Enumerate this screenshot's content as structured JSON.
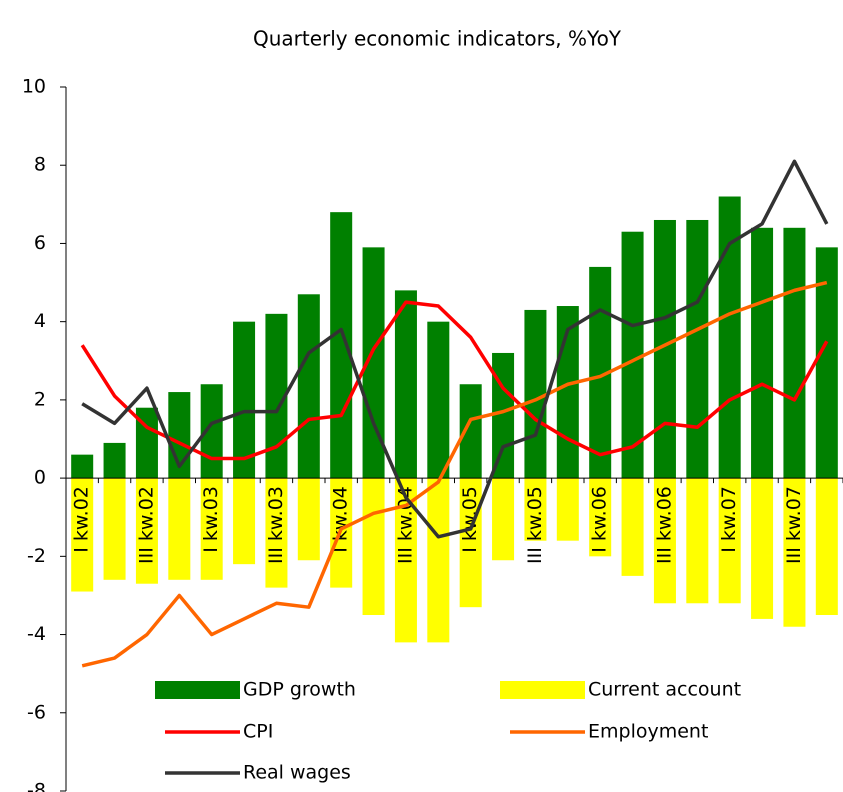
{
  "chart_data": {
    "type": "bar",
    "title": "Quarterly economic indicators, %YoY",
    "categories": [
      "I kw.02",
      null,
      "III kw.02",
      null,
      "I kw.03",
      null,
      "III kw.03",
      null,
      "I kw.04",
      null,
      "III kw.04",
      null,
      "I kw.05",
      null,
      "III kw.05",
      null,
      "I kw.06",
      null,
      "III kw.06",
      null,
      "I kw.07",
      null,
      "III kw.07",
      null
    ],
    "series": [
      {
        "name": "GDP growth",
        "type": "bar",
        "color": "#008000",
        "values": [
          0.6,
          0.9,
          1.8,
          2.2,
          2.4,
          4.0,
          4.2,
          4.7,
          6.8,
          5.9,
          4.8,
          4.0,
          2.4,
          3.2,
          4.3,
          4.4,
          5.4,
          6.3,
          6.6,
          6.6,
          7.2,
          6.4,
          6.4,
          5.9
        ]
      },
      {
        "name": "Current account",
        "type": "bar",
        "color": "#ffff00",
        "values": [
          -2.9,
          -2.6,
          -2.7,
          -2.6,
          -2.6,
          -2.2,
          -2.8,
          -2.1,
          -2.8,
          -3.5,
          -4.2,
          -4.2,
          -3.3,
          -2.1,
          -1.6,
          -1.6,
          -2.0,
          -2.5,
          -3.2,
          -3.2,
          -3.2,
          -3.6,
          -3.8,
          -3.5
        ]
      },
      {
        "name": "CPI",
        "type": "line",
        "color": "#ff0000",
        "values": [
          3.4,
          2.1,
          1.3,
          0.9,
          0.5,
          0.5,
          0.8,
          1.5,
          1.6,
          3.3,
          4.5,
          4.4,
          3.6,
          2.3,
          1.5,
          1.0,
          0.6,
          0.8,
          1.4,
          1.3,
          2.0,
          2.4,
          2.0,
          3.5
        ]
      },
      {
        "name": "Employment",
        "type": "line",
        "color": "#ff6600",
        "values": [
          -4.8,
          -4.6,
          -4.0,
          -3.0,
          -4.0,
          -3.6,
          -3.2,
          -3.3,
          -1.3,
          -0.9,
          -0.7,
          -0.1,
          1.5,
          1.7,
          2.0,
          2.4,
          2.6,
          3.0,
          3.4,
          3.8,
          4.2,
          4.5,
          4.8,
          5.0
        ]
      },
      {
        "name": "Real wages",
        "type": "line",
        "color": "#333333",
        "values": [
          1.9,
          1.4,
          2.3,
          0.3,
          1.4,
          1.7,
          1.7,
          3.2,
          3.8,
          1.4,
          -0.5,
          -1.5,
          -1.3,
          0.8,
          1.1,
          3.8,
          4.3,
          3.9,
          4.1,
          4.5,
          6.0,
          6.5,
          8.1,
          6.5
        ]
      }
    ],
    "ylim": [
      -8,
      10
    ],
    "yticks": [
      -8,
      -6,
      -4,
      -2,
      0,
      2,
      4,
      6,
      8,
      10
    ]
  }
}
